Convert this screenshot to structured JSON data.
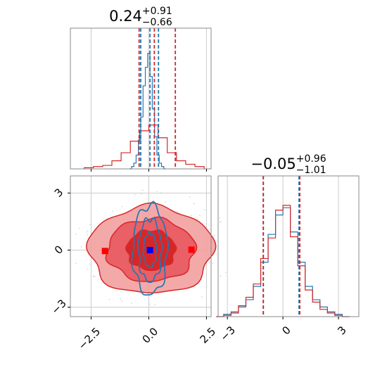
{
  "chart_data": [
    {
      "type": "histogram",
      "panel": "x-marginal",
      "title": {
        "base": "0.24",
        "sup": "+0.91",
        "sub": "−0.66"
      },
      "xlim": [
        -3.4,
        2.7
      ],
      "grid": true,
      "series": [
        {
          "color": "#1f77b4",
          "bins": [
            [
              -0.8,
              0.0
            ],
            [
              -0.7,
              0.02
            ],
            [
              -0.6,
              0.05
            ],
            [
              -0.5,
              0.12
            ],
            [
              -0.4,
              0.25
            ],
            [
              -0.3,
              0.45
            ],
            [
              -0.2,
              0.72
            ],
            [
              -0.1,
              0.88
            ],
            [
              0.0,
              1.0
            ],
            [
              0.1,
              0.8
            ],
            [
              0.2,
              0.52
            ],
            [
              0.3,
              0.28
            ],
            [
              0.4,
              0.12
            ],
            [
              0.5,
              0.05
            ],
            [
              0.6,
              0.02
            ],
            [
              0.7,
              0.0
            ]
          ]
        },
        {
          "color": "#d62728",
          "bins": [
            [
              -2.6,
              0.01
            ],
            [
              -2.2,
              0.02
            ],
            [
              -1.8,
              0.03
            ],
            [
              -1.4,
              0.07
            ],
            [
              -1.0,
              0.14
            ],
            [
              -0.6,
              0.24
            ],
            [
              -0.2,
              0.33
            ],
            [
              0.2,
              0.38
            ],
            [
              0.6,
              0.27
            ],
            [
              1.0,
              0.14
            ],
            [
              1.4,
              0.07
            ],
            [
              1.8,
              0.04
            ],
            [
              2.2,
              0.02
            ]
          ]
        }
      ],
      "quantile_lines": [
        {
          "color": "#1f77b4",
          "x": [
            -0.35,
            0.05,
            0.42
          ]
        },
        {
          "color": "#d62728",
          "x": [
            -0.42,
            0.24,
            1.15
          ]
        }
      ]
    },
    {
      "type": "contour",
      "panel": "joint",
      "xlim": [
        -3.4,
        2.7
      ],
      "ylim": [
        -3.5,
        3.9
      ],
      "x_ticks": [
        "−2.5",
        "0.0",
        "2.5"
      ],
      "x_tick_values": [
        -2.5,
        0.0,
        2.5
      ],
      "y_ticks": [
        "3",
        "0",
        "−3"
      ],
      "y_tick_values": [
        3,
        0,
        -3
      ],
      "grid": true,
      "red_levels": [
        {
          "rx": 2.7,
          "ry": 2.3
        },
        {
          "rx": 1.9,
          "ry": 1.65
        },
        {
          "rx": 1.05,
          "ry": 1.05
        }
      ],
      "blue_levels": [
        {
          "rx": 0.75,
          "ry": 2.35
        },
        {
          "rx": 0.5,
          "ry": 1.65
        },
        {
          "rx": 0.28,
          "ry": 0.9
        }
      ],
      "markers": [
        {
          "x": -1.9,
          "y": -0.05,
          "color": "#ff0000"
        },
        {
          "x": 1.85,
          "y": 0.02,
          "color": "#ff0000"
        },
        {
          "x": 0.05,
          "y": 0.0,
          "color": "#0000ff"
        }
      ]
    },
    {
      "type": "histogram",
      "panel": "y-marginal",
      "title": {
        "base": "−0.05",
        "sup": "+0.96",
        "sub": "−1.01"
      },
      "xlim": [
        -3.5,
        4.1
      ],
      "x_ticks": [
        "−3",
        "0",
        "3"
      ],
      "x_tick_values": [
        -3,
        0,
        3
      ],
      "grid": true,
      "series": [
        {
          "color": "#1f77b4",
          "bins": [
            [
              -3.4,
              0.0
            ],
            [
              -3.0,
              0.02
            ],
            [
              -2.6,
              0.04
            ],
            [
              -2.2,
              0.08
            ],
            [
              -1.8,
              0.14
            ],
            [
              -1.4,
              0.25
            ],
            [
              -1.0,
              0.45
            ],
            [
              -0.6,
              0.68
            ],
            [
              -0.2,
              0.84
            ],
            [
              0.2,
              0.9
            ],
            [
              0.6,
              0.7
            ],
            [
              1.0,
              0.45
            ],
            [
              1.4,
              0.25
            ],
            [
              1.8,
              0.14
            ],
            [
              2.2,
              0.08
            ],
            [
              2.6,
              0.04
            ],
            [
              3.0,
              0.02
            ],
            [
              3.4,
              0.0
            ]
          ]
        },
        {
          "color": "#d62728",
          "bins": [
            [
              -3.4,
              0.0
            ],
            [
              -3.0,
              0.01
            ],
            [
              -2.6,
              0.03
            ],
            [
              -2.2,
              0.09
            ],
            [
              -1.8,
              0.16
            ],
            [
              -1.4,
              0.27
            ],
            [
              -1.0,
              0.48
            ],
            [
              -0.6,
              0.65
            ],
            [
              -0.2,
              0.88
            ],
            [
              0.2,
              0.92
            ],
            [
              0.6,
              0.66
            ],
            [
              1.0,
              0.42
            ],
            [
              1.4,
              0.22
            ],
            [
              1.8,
              0.12
            ],
            [
              2.2,
              0.06
            ],
            [
              2.6,
              0.03
            ],
            [
              3.0,
              0.01
            ],
            [
              3.4,
              0.0
            ]
          ]
        }
      ],
      "quantile_lines": [
        {
          "color": "#1f77b4",
          "x": [
            -1.06,
            0.87
          ]
        },
        {
          "color": "#d62728",
          "x": [
            -1.06,
            0.91
          ]
        }
      ]
    }
  ],
  "colors": {
    "blue": "#1f77b4",
    "red": "#d62728",
    "red_fill": "#f08080",
    "grid": "#cccccc",
    "frame": "#888888"
  }
}
